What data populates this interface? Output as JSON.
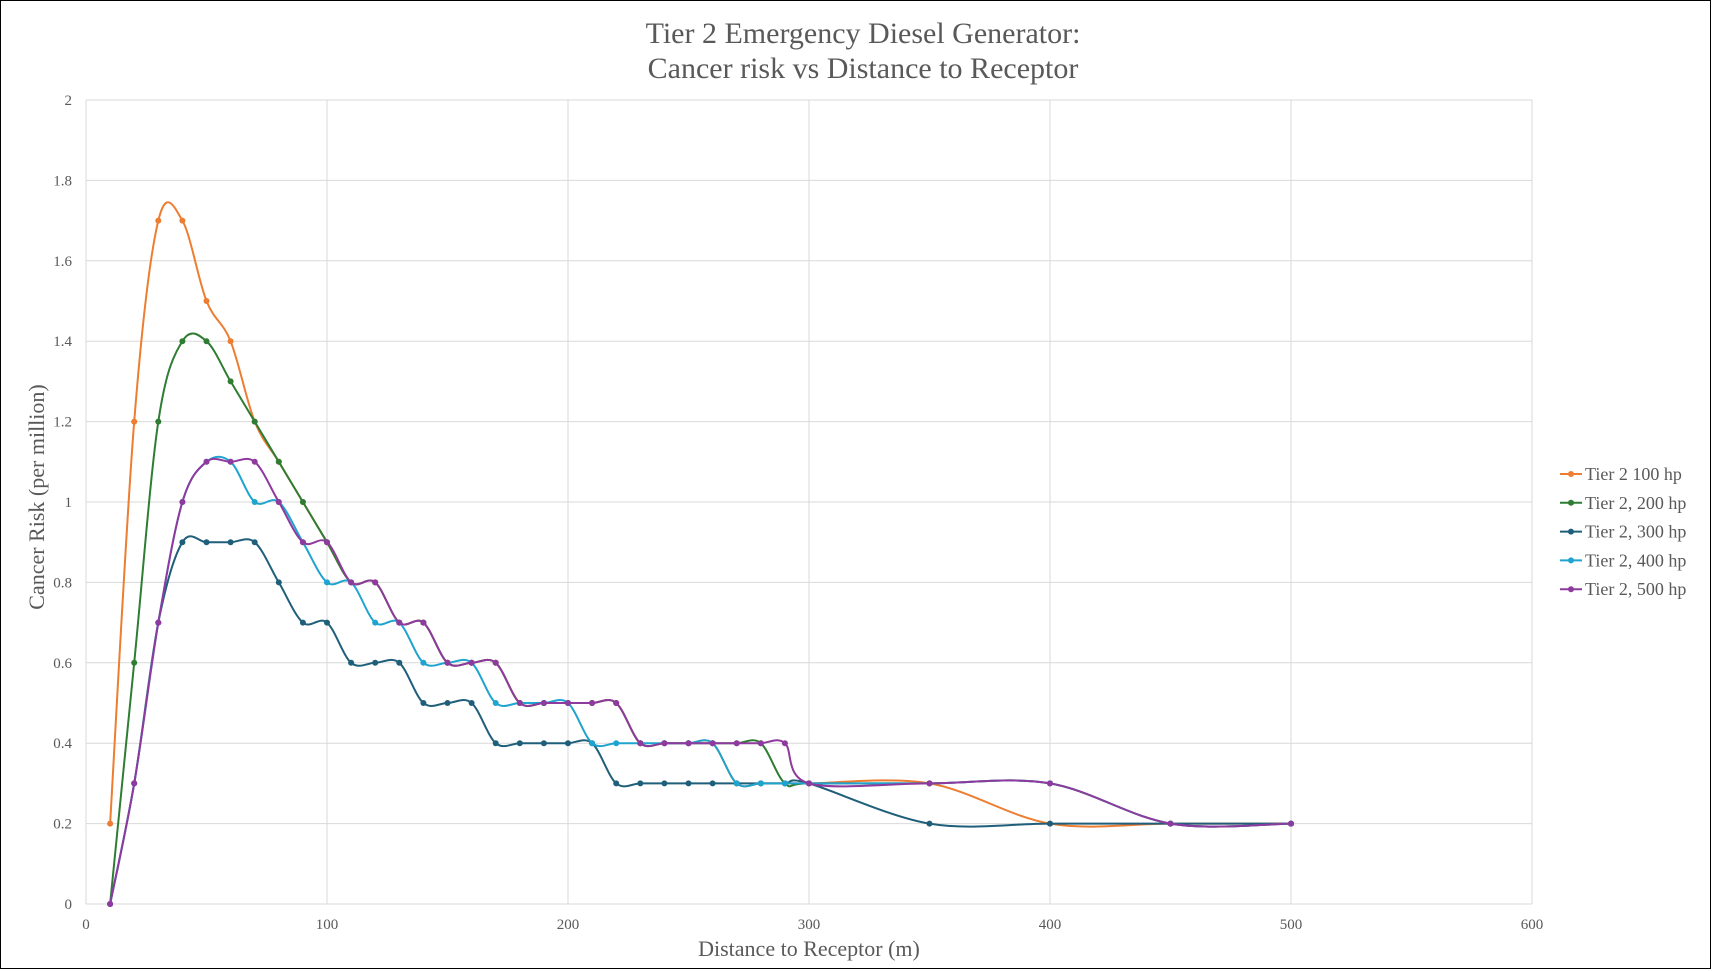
{
  "chart_data": {
    "type": "line",
    "title": [
      "Tier 2 Emergency Diesel Generator:",
      "Cancer risk vs Distance to Receptor"
    ],
    "xlabel": "Distance to Receptor (m)",
    "ylabel": "Cancer Risk (per million)",
    "xlim": [
      0,
      600
    ],
    "ylim": [
      0,
      2
    ],
    "xticks": [
      0,
      100,
      200,
      300,
      400,
      500,
      600
    ],
    "yticks": [
      0,
      0.2,
      0.4,
      0.6,
      0.8,
      1,
      1.2,
      1.4,
      1.6,
      1.8,
      2
    ],
    "grid": true,
    "legend_position": "right",
    "series": [
      {
        "name": "Tier 2 100 hp",
        "color": "#ED7D31",
        "points": [
          [
            10,
            0.2
          ],
          [
            20,
            1.2
          ],
          [
            30,
            1.7
          ],
          [
            40,
            1.7
          ],
          [
            50,
            1.5
          ],
          [
            60,
            1.4
          ],
          [
            70,
            1.2
          ],
          [
            80,
            1.1
          ],
          [
            90,
            1.0
          ],
          [
            100,
            0.9
          ],
          [
            110,
            0.8
          ],
          [
            120,
            0.8
          ],
          [
            130,
            0.7
          ],
          [
            140,
            0.7
          ],
          [
            150,
            0.6
          ],
          [
            160,
            0.6
          ],
          [
            170,
            0.6
          ],
          [
            180,
            0.5
          ],
          [
            190,
            0.5
          ],
          [
            200,
            0.5
          ],
          [
            210,
            0.5
          ],
          [
            220,
            0.5
          ],
          [
            230,
            0.4
          ],
          [
            240,
            0.4
          ],
          [
            250,
            0.4
          ],
          [
            260,
            0.4
          ],
          [
            270,
            0.3
          ],
          [
            280,
            0.3
          ],
          [
            290,
            0.3
          ],
          [
            300,
            0.3
          ],
          [
            350,
            0.3
          ],
          [
            400,
            0.2
          ],
          [
            450,
            0.2
          ],
          [
            500,
            0.2
          ]
        ]
      },
      {
        "name": "Tier 2, 200 hp",
        "color": "#2E7D32",
        "points": [
          [
            10,
            0
          ],
          [
            20,
            0.6
          ],
          [
            30,
            1.2
          ],
          [
            40,
            1.4
          ],
          [
            50,
            1.4
          ],
          [
            60,
            1.3
          ],
          [
            70,
            1.2
          ],
          [
            80,
            1.1
          ],
          [
            90,
            1.0
          ],
          [
            100,
            0.9
          ],
          [
            110,
            0.8
          ],
          [
            120,
            0.8
          ],
          [
            130,
            0.7
          ],
          [
            140,
            0.7
          ],
          [
            150,
            0.6
          ],
          [
            160,
            0.6
          ],
          [
            170,
            0.6
          ],
          [
            180,
            0.5
          ],
          [
            190,
            0.5
          ],
          [
            200,
            0.5
          ],
          [
            210,
            0.5
          ],
          [
            220,
            0.5
          ],
          [
            230,
            0.4
          ],
          [
            240,
            0.4
          ],
          [
            250,
            0.4
          ],
          [
            260,
            0.4
          ],
          [
            270,
            0.4
          ],
          [
            280,
            0.4
          ],
          [
            290,
            0.3
          ],
          [
            300,
            0.3
          ],
          [
            350,
            0.3
          ],
          [
            400,
            0.3
          ],
          [
            450,
            0.2
          ],
          [
            500,
            0.2
          ]
        ]
      },
      {
        "name": "Tier 2, 300 hp",
        "color": "#1F5F7A",
        "points": [
          [
            10,
            0
          ],
          [
            20,
            0.3
          ],
          [
            30,
            0.7
          ],
          [
            40,
            0.9
          ],
          [
            50,
            0.9
          ],
          [
            60,
            0.9
          ],
          [
            70,
            0.9
          ],
          [
            80,
            0.8
          ],
          [
            90,
            0.7
          ],
          [
            100,
            0.7
          ],
          [
            110,
            0.6
          ],
          [
            120,
            0.6
          ],
          [
            130,
            0.6
          ],
          [
            140,
            0.5
          ],
          [
            150,
            0.5
          ],
          [
            160,
            0.5
          ],
          [
            170,
            0.4
          ],
          [
            180,
            0.4
          ],
          [
            190,
            0.4
          ],
          [
            200,
            0.4
          ],
          [
            210,
            0.4
          ],
          [
            220,
            0.3
          ],
          [
            230,
            0.3
          ],
          [
            240,
            0.3
          ],
          [
            250,
            0.3
          ],
          [
            260,
            0.3
          ],
          [
            270,
            0.3
          ],
          [
            280,
            0.3
          ],
          [
            290,
            0.3
          ],
          [
            300,
            0.3
          ],
          [
            350,
            0.2
          ],
          [
            400,
            0.2
          ],
          [
            450,
            0.2
          ],
          [
            500,
            0.2
          ]
        ]
      },
      {
        "name": "Tier 2, 400 hp",
        "color": "#1FA3CF",
        "points": [
          [
            10,
            0
          ],
          [
            20,
            0.3
          ],
          [
            30,
            0.7
          ],
          [
            40,
            1.0
          ],
          [
            50,
            1.1
          ],
          [
            60,
            1.1
          ],
          [
            70,
            1.0
          ],
          [
            80,
            1.0
          ],
          [
            90,
            0.9
          ],
          [
            100,
            0.8
          ],
          [
            110,
            0.8
          ],
          [
            120,
            0.7
          ],
          [
            130,
            0.7
          ],
          [
            140,
            0.6
          ],
          [
            150,
            0.6
          ],
          [
            160,
            0.6
          ],
          [
            170,
            0.5
          ],
          [
            180,
            0.5
          ],
          [
            190,
            0.5
          ],
          [
            200,
            0.5
          ],
          [
            210,
            0.4
          ],
          [
            220,
            0.4
          ],
          [
            230,
            0.4
          ],
          [
            240,
            0.4
          ],
          [
            250,
            0.4
          ],
          [
            260,
            0.4
          ],
          [
            270,
            0.3
          ],
          [
            280,
            0.3
          ],
          [
            290,
            0.3
          ],
          [
            300,
            0.3
          ],
          [
            350,
            0.3
          ],
          [
            400,
            0.3
          ],
          [
            450,
            0.2
          ],
          [
            500,
            0.2
          ]
        ]
      },
      {
        "name": "Tier 2, 500 hp",
        "color": "#8E3A9E",
        "points": [
          [
            10,
            0
          ],
          [
            20,
            0.3
          ],
          [
            30,
            0.7
          ],
          [
            40,
            1.0
          ],
          [
            50,
            1.1
          ],
          [
            60,
            1.1
          ],
          [
            70,
            1.1
          ],
          [
            80,
            1.0
          ],
          [
            90,
            0.9
          ],
          [
            100,
            0.9
          ],
          [
            110,
            0.8
          ],
          [
            120,
            0.8
          ],
          [
            130,
            0.7
          ],
          [
            140,
            0.7
          ],
          [
            150,
            0.6
          ],
          [
            160,
            0.6
          ],
          [
            170,
            0.6
          ],
          [
            180,
            0.5
          ],
          [
            190,
            0.5
          ],
          [
            200,
            0.5
          ],
          [
            210,
            0.5
          ],
          [
            220,
            0.5
          ],
          [
            230,
            0.4
          ],
          [
            240,
            0.4
          ],
          [
            250,
            0.4
          ],
          [
            260,
            0.4
          ],
          [
            270,
            0.4
          ],
          [
            280,
            0.4
          ],
          [
            290,
            0.4
          ],
          [
            300,
            0.3
          ],
          [
            350,
            0.3
          ],
          [
            400,
            0.3
          ],
          [
            450,
            0.2
          ],
          [
            500,
            0.2
          ]
        ]
      }
    ]
  }
}
